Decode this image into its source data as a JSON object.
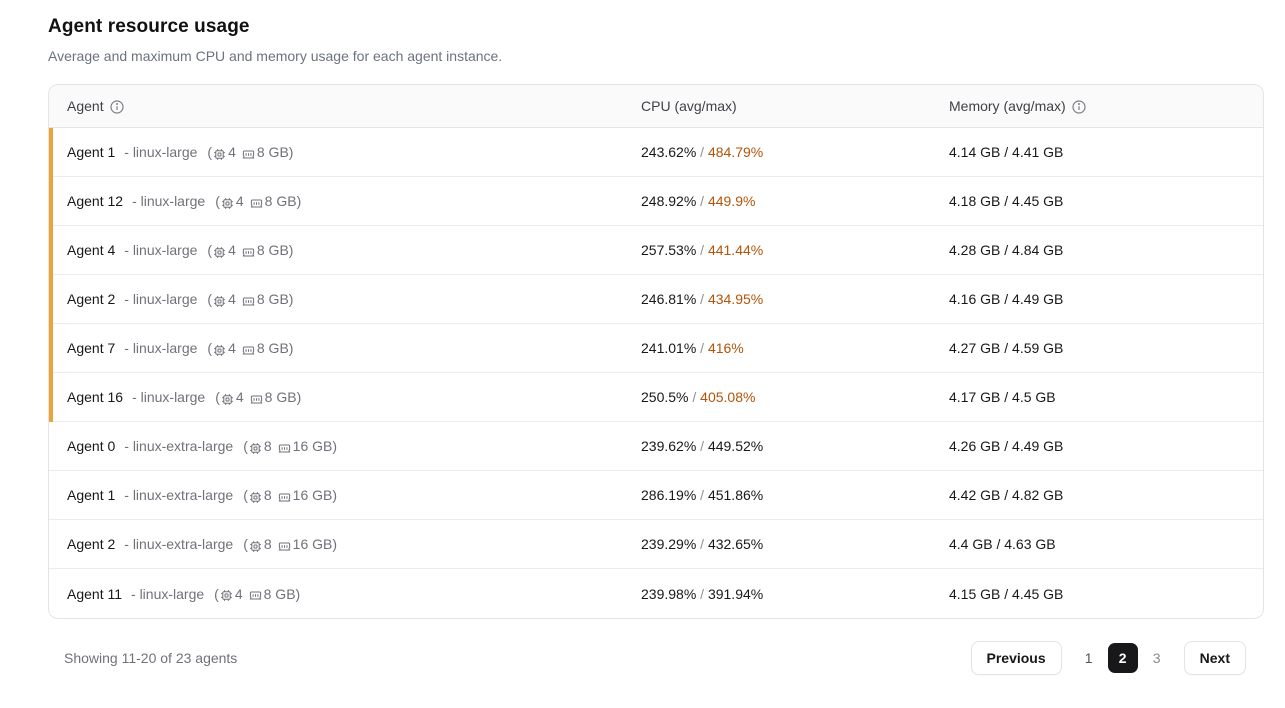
{
  "header": {
    "title": "Agent resource usage",
    "subtitle": "Average and maximum CPU and memory usage for each agent instance."
  },
  "colors": {
    "flag_bar": "#eba43c",
    "cpu_hot_text": "#b45309",
    "header_bg": "#fafafa",
    "border": "#e4e4e7",
    "active_page_bg": "#18181b"
  },
  "table": {
    "columns": [
      {
        "label": "Agent",
        "info_icon": true
      },
      {
        "label": "CPU (avg/max)",
        "info_icon": false
      },
      {
        "label": "Memory (avg/max)",
        "info_icon": true
      }
    ],
    "rows": [
      {
        "name": "Agent 1",
        "size": "- linux-large",
        "cpus": "4",
        "ram": "8 GB",
        "cpu_avg": "243.62%",
        "cpu_max": "484.79%",
        "mem": "4.14 GB / 4.41 GB",
        "flagged": true
      },
      {
        "name": "Agent 12",
        "size": "- linux-large",
        "cpus": "4",
        "ram": "8 GB",
        "cpu_avg": "248.92%",
        "cpu_max": "449.9%",
        "mem": "4.18 GB / 4.45 GB",
        "flagged": true
      },
      {
        "name": "Agent 4",
        "size": "- linux-large",
        "cpus": "4",
        "ram": "8 GB",
        "cpu_avg": "257.53%",
        "cpu_max": "441.44%",
        "mem": "4.28 GB / 4.84 GB",
        "flagged": true
      },
      {
        "name": "Agent 2",
        "size": "- linux-large",
        "cpus": "4",
        "ram": "8 GB",
        "cpu_avg": "246.81%",
        "cpu_max": "434.95%",
        "mem": "4.16 GB / 4.49 GB",
        "flagged": true
      },
      {
        "name": "Agent 7",
        "size": "- linux-large",
        "cpus": "4",
        "ram": "8 GB",
        "cpu_avg": "241.01%",
        "cpu_max": "416%",
        "mem": "4.27 GB / 4.59 GB",
        "flagged": true
      },
      {
        "name": "Agent 16",
        "size": "- linux-large",
        "cpus": "4",
        "ram": "8 GB",
        "cpu_avg": "250.5%",
        "cpu_max": "405.08%",
        "mem": "4.17 GB / 4.5 GB",
        "flagged": true
      },
      {
        "name": "Agent 0",
        "size": "- linux-extra-large",
        "cpus": "8",
        "ram": "16 GB",
        "cpu_avg": "239.62%",
        "cpu_max": "449.52%",
        "mem": "4.26 GB / 4.49 GB",
        "flagged": false
      },
      {
        "name": "Agent 1",
        "size": "- linux-extra-large",
        "cpus": "8",
        "ram": "16 GB",
        "cpu_avg": "286.19%",
        "cpu_max": "451.86%",
        "mem": "4.42 GB / 4.82 GB",
        "flagged": false
      },
      {
        "name": "Agent 2",
        "size": "- linux-extra-large",
        "cpus": "8",
        "ram": "16 GB",
        "cpu_avg": "239.29%",
        "cpu_max": "432.65%",
        "mem": "4.4 GB / 4.63 GB",
        "flagged": false
      },
      {
        "name": "Agent 11",
        "size": "- linux-large",
        "cpus": "4",
        "ram": "8 GB",
        "cpu_avg": "239.98%",
        "cpu_max": "391.94%",
        "mem": "4.15 GB / 4.45 GB",
        "flagged": false
      }
    ],
    "value_separator": "/",
    "spec_open": "(",
    "spec_close": ")"
  },
  "footer": {
    "showing_text": "Showing 11-20 of 23 agents",
    "pagination": {
      "previous_label": "Previous",
      "next_label": "Next",
      "pages": [
        "1",
        "2",
        "3"
      ],
      "active_page": "2"
    }
  }
}
